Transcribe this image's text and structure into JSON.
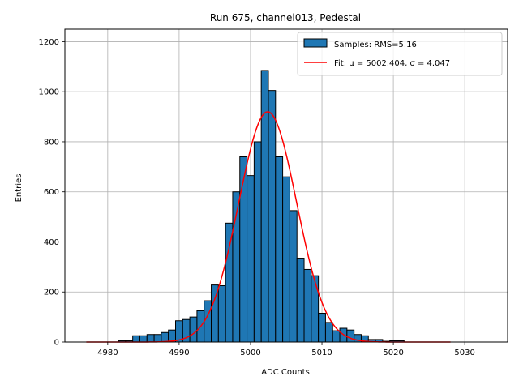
{
  "chart_data": {
    "type": "bar",
    "title": "Run 675, channel013, Pedestal",
    "xlabel": "ADC Counts",
    "ylabel": "Entries",
    "xlim": [
      4974,
      5036
    ],
    "ylim": [
      0,
      1250
    ],
    "xticks": [
      4980,
      4990,
      5000,
      5010,
      5020,
      5030
    ],
    "yticks": [
      0,
      200,
      400,
      600,
      800,
      1000,
      1200
    ],
    "grid": true,
    "legend_position": "top-right",
    "bar_color": "#1f77b4",
    "fit_color": "#ff0000",
    "histogram": {
      "name": "Samples: RMS=5.16",
      "bin_width": 1,
      "bins": [
        {
          "x": 4982,
          "y": 5
        },
        {
          "x": 4983,
          "y": 5
        },
        {
          "x": 4984,
          "y": 25
        },
        {
          "x": 4985,
          "y": 25
        },
        {
          "x": 4986,
          "y": 30
        },
        {
          "x": 4987,
          "y": 30
        },
        {
          "x": 4988,
          "y": 38
        },
        {
          "x": 4989,
          "y": 48
        },
        {
          "x": 4990,
          "y": 85
        },
        {
          "x": 4991,
          "y": 90
        },
        {
          "x": 4992,
          "y": 100
        },
        {
          "x": 4993,
          "y": 125
        },
        {
          "x": 4994,
          "y": 165
        },
        {
          "x": 4995,
          "y": 228
        },
        {
          "x": 4996,
          "y": 225
        },
        {
          "x": 4997,
          "y": 475
        },
        {
          "x": 4998,
          "y": 600
        },
        {
          "x": 4999,
          "y": 740
        },
        {
          "x": 5000,
          "y": 665
        },
        {
          "x": 5001,
          "y": 800
        },
        {
          "x": 5002,
          "y": 1085
        },
        {
          "x": 5003,
          "y": 1005
        },
        {
          "x": 5004,
          "y": 740
        },
        {
          "x": 5005,
          "y": 660
        },
        {
          "x": 5006,
          "y": 525
        },
        {
          "x": 5007,
          "y": 335
        },
        {
          "x": 5008,
          "y": 290
        },
        {
          "x": 5009,
          "y": 265
        },
        {
          "x": 5010,
          "y": 115
        },
        {
          "x": 5011,
          "y": 78
        },
        {
          "x": 5012,
          "y": 45
        },
        {
          "x": 5013,
          "y": 55
        },
        {
          "x": 5014,
          "y": 48
        },
        {
          "x": 5015,
          "y": 30
        },
        {
          "x": 5016,
          "y": 25
        },
        {
          "x": 5017,
          "y": 10
        },
        {
          "x": 5018,
          "y": 10
        },
        {
          "x": 5019,
          "y": 3
        },
        {
          "x": 5020,
          "y": 5
        },
        {
          "x": 5021,
          "y": 5
        }
      ]
    },
    "fit": {
      "name": "Fit: μ = 5002.404, σ = 4.047",
      "mu": 5002.404,
      "sigma": 4.047,
      "amplitude": 920,
      "x_range": [
        4977,
        5028
      ]
    }
  }
}
